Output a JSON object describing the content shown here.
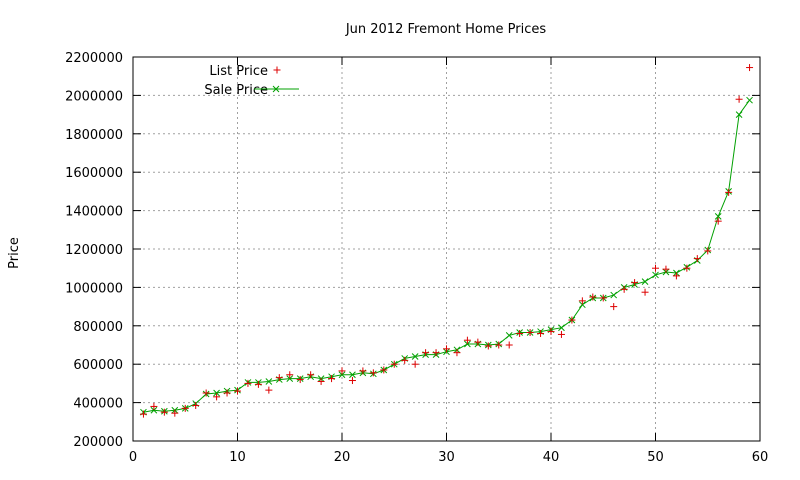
{
  "chart_data": {
    "type": "line",
    "title": "Jun 2012 Fremont Home Prices",
    "xlabel": "",
    "ylabel": "Price",
    "xlim": [
      0,
      60
    ],
    "ylim": [
      200000,
      2200000
    ],
    "x_ticks": [
      "0",
      "10",
      "20",
      "30",
      "40",
      "50",
      "60"
    ],
    "y_ticks": [
      "200000",
      "400000",
      "600000",
      "800000",
      "1000000",
      "1200000",
      "1400000",
      "1600000",
      "1800000",
      "2000000",
      "2200000"
    ],
    "x_tick_values": [
      0,
      10,
      20,
      30,
      40,
      50,
      60
    ],
    "y_tick_values": [
      200000,
      400000,
      600000,
      800000,
      1000000,
      1200000,
      1400000,
      1600000,
      1800000,
      2000000,
      2200000
    ],
    "grid": true,
    "legend_position": "top-left",
    "series": [
      {
        "name": "List Price",
        "style": "points",
        "marker": "+",
        "color": "#dd0000",
        "x": [
          1,
          2,
          3,
          4,
          5,
          6,
          7,
          8,
          9,
          10,
          11,
          12,
          13,
          14,
          15,
          16,
          17,
          18,
          19,
          20,
          21,
          22,
          23,
          24,
          25,
          26,
          27,
          28,
          29,
          30,
          31,
          32,
          33,
          34,
          35,
          36,
          37,
          38,
          39,
          40,
          41,
          42,
          43,
          44,
          45,
          46,
          47,
          48,
          49,
          50,
          51,
          52,
          53,
          54,
          55,
          56,
          57,
          58,
          59
        ],
        "values": [
          340000,
          380000,
          350000,
          345000,
          370000,
          385000,
          450000,
          430000,
          450000,
          460000,
          500000,
          495000,
          465000,
          530000,
          545000,
          520000,
          545000,
          510000,
          525000,
          565000,
          515000,
          565000,
          555000,
          570000,
          600000,
          620000,
          600000,
          660000,
          660000,
          680000,
          660000,
          725000,
          715000,
          695000,
          700000,
          700000,
          760000,
          765000,
          760000,
          770000,
          755000,
          830000,
          930000,
          950000,
          945000,
          900000,
          990000,
          1025000,
          975000,
          1100000,
          1095000,
          1060000,
          1100000,
          1150000,
          1190000,
          1345000,
          1495000,
          1980000,
          2145000
        ]
      },
      {
        "name": "Sale Price",
        "style": "linespoints",
        "marker": "x",
        "color": "#00a000",
        "x": [
          1,
          2,
          3,
          4,
          5,
          6,
          7,
          8,
          9,
          10,
          11,
          12,
          13,
          14,
          15,
          16,
          17,
          18,
          19,
          20,
          21,
          22,
          23,
          24,
          25,
          26,
          27,
          28,
          29,
          30,
          31,
          32,
          33,
          34,
          35,
          36,
          37,
          38,
          39,
          40,
          41,
          42,
          43,
          44,
          45,
          46,
          47,
          48,
          49,
          50,
          51,
          52,
          53,
          54,
          55,
          56,
          57,
          58,
          59
        ],
        "values": [
          350000,
          360000,
          355000,
          360000,
          370000,
          395000,
          445000,
          450000,
          460000,
          465000,
          505000,
          505000,
          510000,
          520000,
          525000,
          525000,
          535000,
          525000,
          535000,
          545000,
          545000,
          555000,
          550000,
          570000,
          600000,
          630000,
          640000,
          650000,
          650000,
          665000,
          675000,
          705000,
          705000,
          700000,
          705000,
          750000,
          765000,
          765000,
          770000,
          780000,
          790000,
          830000,
          910000,
          945000,
          945000,
          960000,
          1000000,
          1015000,
          1030000,
          1065000,
          1080000,
          1075000,
          1105000,
          1140000,
          1195000,
          1370000,
          1500000,
          1900000,
          1975000
        ]
      }
    ]
  }
}
